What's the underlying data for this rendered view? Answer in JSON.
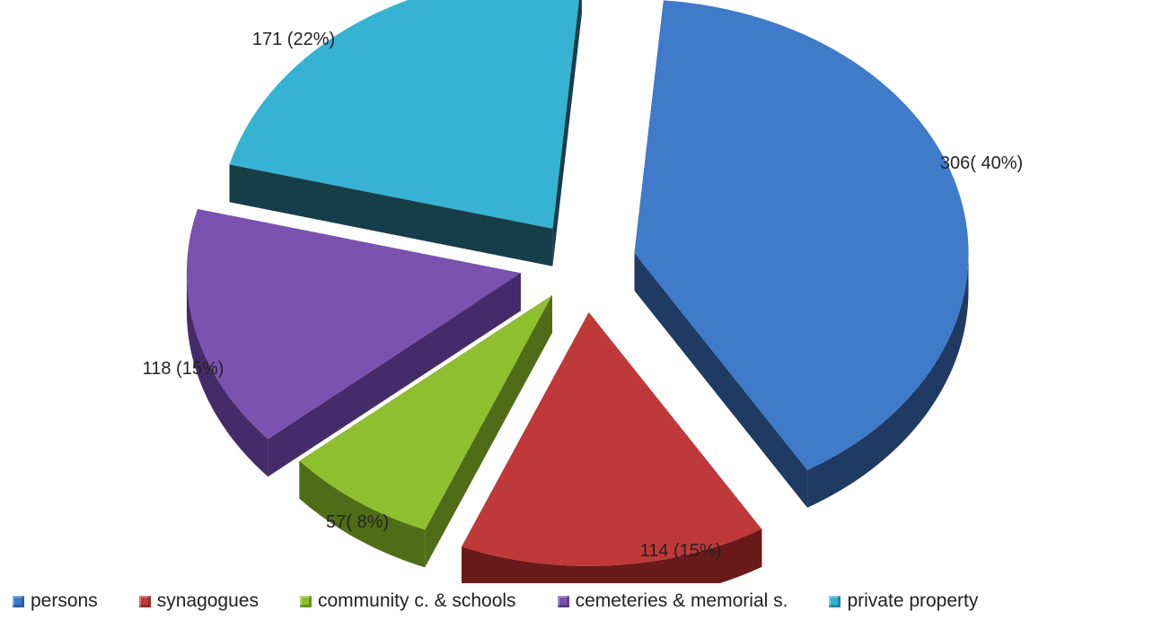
{
  "chart_data": {
    "type": "pie",
    "three_d": true,
    "exploded": true,
    "slices": [
      {
        "name": "persons",
        "value": 306,
        "percent": 40,
        "label": "306( 40%)",
        "color": "#3f7bc9",
        "side_color": "#1f3b63"
      },
      {
        "name": "synagogues",
        "value": 114,
        "percent": 15,
        "label": "114 (15%)",
        "color": "#c0393a",
        "side_color": "#6a1a1a"
      },
      {
        "name": "community c. & schools",
        "value": 57,
        "percent": 8,
        "label": "57( 8%)",
        "color": "#8fbf2f",
        "side_color": "#4f6d17"
      },
      {
        "name": "cemeteries & memorial s.",
        "value": 118,
        "percent": 15,
        "label": "118 (15%)",
        "color": "#7a52b0",
        "side_color": "#452b6a"
      },
      {
        "name": "private property",
        "value": 171,
        "percent": 22,
        "label": "171 (22%)",
        "color": "#36b3d3",
        "side_color": "#163e48"
      }
    ],
    "legend_position": "bottom"
  }
}
